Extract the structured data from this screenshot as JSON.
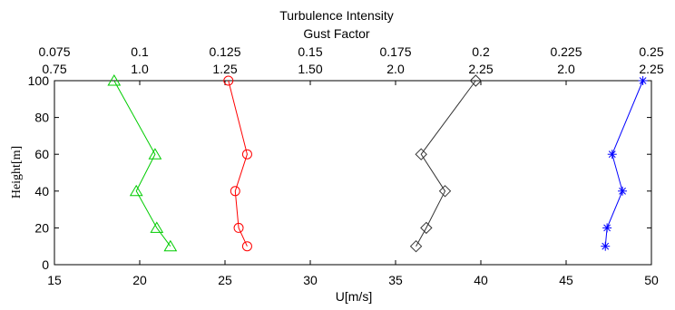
{
  "chart_data": {
    "type": "line",
    "title": "Turbulence Intensity",
    "subtitle": "Gust Factor",
    "xlabel": "U[m/s]",
    "ylabel": "Height[m]",
    "xlim": [
      15,
      50
    ],
    "ylim": [
      0,
      100
    ],
    "grid": false,
    "x_ticks": [
      "15",
      "20",
      "25",
      "30",
      "35",
      "40",
      "45",
      "50"
    ],
    "y_ticks": [
      "0",
      "20",
      "40",
      "60",
      "80",
      "100"
    ],
    "top_ticks_turbulence": [
      "0.075",
      "0.1",
      "0.125",
      "0.15",
      "0.175",
      "0.2",
      "0.225",
      "0.25"
    ],
    "top_ticks_gust": [
      "0.75",
      "1.0",
      "1.25",
      "1.50",
      "2.0",
      "2.25",
      "2.0",
      "2.25"
    ],
    "series": [
      {
        "marker": "triangle",
        "color": "#00cc00",
        "points": [
          {
            "x": 21.8,
            "y": 10
          },
          {
            "x": 21.0,
            "y": 20
          },
          {
            "x": 19.8,
            "y": 40
          },
          {
            "x": 20.9,
            "y": 60
          },
          {
            "x": 18.5,
            "y": 100
          }
        ]
      },
      {
        "marker": "circle",
        "color": "#ff0000",
        "points": [
          {
            "x": 26.3,
            "y": 10
          },
          {
            "x": 25.8,
            "y": 20
          },
          {
            "x": 25.6,
            "y": 40
          },
          {
            "x": 26.3,
            "y": 60
          },
          {
            "x": 25.2,
            "y": 100
          }
        ]
      },
      {
        "marker": "diamond",
        "color": "#333333",
        "points": [
          {
            "x": 36.2,
            "y": 10
          },
          {
            "x": 36.8,
            "y": 20
          },
          {
            "x": 37.9,
            "y": 40
          },
          {
            "x": 36.5,
            "y": 60
          },
          {
            "x": 39.7,
            "y": 100
          }
        ]
      },
      {
        "marker": "asterisk",
        "color": "#0000ff",
        "points": [
          {
            "x": 47.3,
            "y": 10
          },
          {
            "x": 47.4,
            "y": 20
          },
          {
            "x": 48.3,
            "y": 40
          },
          {
            "x": 47.7,
            "y": 60
          },
          {
            "x": 49.5,
            "y": 100
          }
        ]
      }
    ]
  }
}
